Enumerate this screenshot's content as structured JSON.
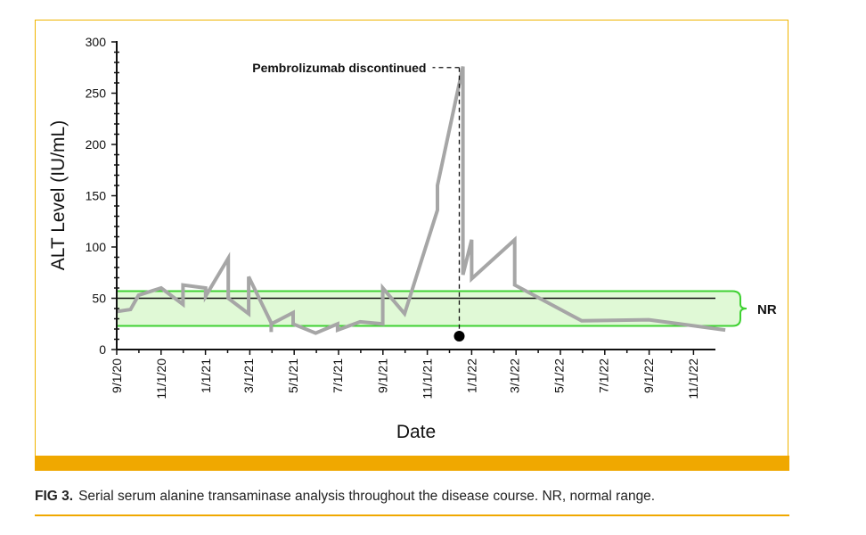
{
  "chart_data": {
    "type": "line",
    "xlabel": "Date",
    "ylabel": "ALT Level (IU/mL)",
    "ylim": [
      0,
      300
    ],
    "yticks": [
      0,
      50,
      100,
      150,
      200,
      250,
      300
    ],
    "xticks": [
      "9/1/20",
      "11/1/20",
      "1/1/21",
      "3/1/21",
      "5/1/21",
      "7/1/21",
      "9/1/21",
      "11/1/21",
      "1/1/22",
      "3/1/22",
      "5/1/22",
      "7/1/22",
      "9/1/22",
      "11/1/22"
    ],
    "series": [
      {
        "color": "#a6a6a6",
        "points": [
          [
            "2020-09-01",
            37
          ],
          [
            "2020-09-20",
            39
          ],
          [
            "2020-10-01",
            53
          ],
          [
            "2020-11-01",
            60
          ],
          [
            "2020-12-01",
            44
          ],
          [
            "2020-12-01",
            63
          ],
          [
            "2021-01-01",
            60
          ],
          [
            "2021-01-01",
            52
          ],
          [
            "2021-02-01",
            89
          ],
          [
            "2021-02-01",
            50
          ],
          [
            "2021-03-01",
            35
          ],
          [
            "2021-03-01",
            71
          ],
          [
            "2021-04-01",
            26
          ],
          [
            "2021-04-01",
            17
          ],
          [
            "2021-04-01",
            25
          ],
          [
            "2021-05-01",
            36
          ],
          [
            "2021-05-01",
            25
          ],
          [
            "2021-06-01",
            16
          ],
          [
            "2021-07-01",
            25
          ],
          [
            "2021-07-01",
            19
          ],
          [
            "2021-08-01",
            27
          ],
          [
            "2021-09-01",
            25
          ],
          [
            "2021-09-01",
            60
          ],
          [
            "2021-10-01",
            35
          ],
          [
            "2021-11-15",
            136
          ],
          [
            "2021-11-15",
            160
          ],
          [
            "2021-12-20",
            276
          ],
          [
            "2021-12-20",
            73
          ],
          [
            "2022-01-01",
            107
          ],
          [
            "2022-01-01",
            69
          ],
          [
            "2022-03-01",
            107
          ],
          [
            "2022-03-01",
            63
          ],
          [
            "2022-06-01",
            28
          ],
          [
            "2022-09-01",
            29
          ],
          [
            "2022-12-15",
            19
          ]
        ]
      }
    ],
    "reference_line": {
      "y": 50
    },
    "normal_range": {
      "label": "NR",
      "y_min": 23,
      "y_max": 57,
      "fill": "#e0f9d6",
      "stroke": "#3ed131"
    },
    "annotation": {
      "text": "Pembrolizumab discontinued",
      "date": "2021-12-15",
      "y": 275,
      "marker_y": 13
    }
  },
  "caption": {
    "label": "FIG 3.",
    "text": "Serial serum alanine transaminase analysis throughout the disease course. NR, normal range."
  }
}
